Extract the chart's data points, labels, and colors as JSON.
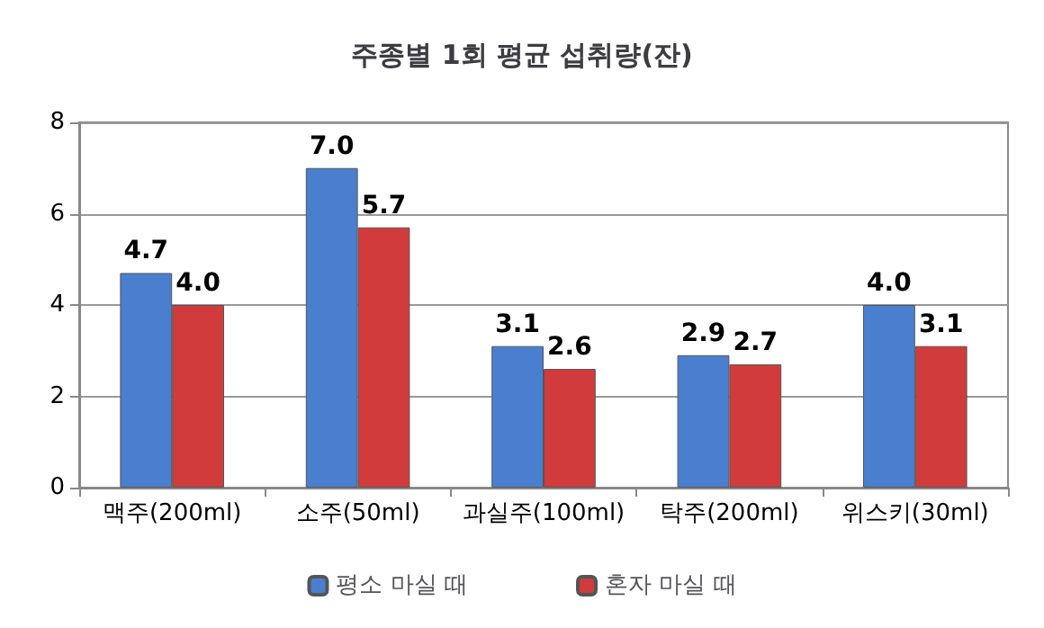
{
  "chart_data": {
    "type": "bar",
    "title": "주종별 1회 평균 섭취량(잔)",
    "categories": [
      "맥주(200ml)",
      "소주(50ml)",
      "과실주(100ml)",
      "탁주(200ml)",
      "위스키(30ml)"
    ],
    "series": [
      {
        "name": "평소 마실 때",
        "color": "#4a7fd0",
        "values": [
          4.7,
          7.0,
          3.1,
          2.9,
          4.0
        ],
        "value_labels": [
          "4.7",
          "7.0",
          "3.1",
          "2.9",
          "4.0"
        ]
      },
      {
        "name": "혼자 마실 때",
        "color": "#d23b3b",
        "values": [
          4.0,
          5.7,
          2.6,
          2.7,
          3.1
        ],
        "value_labels": [
          "4.0",
          "5.7",
          "2.6",
          "2.7",
          "3.1"
        ]
      }
    ],
    "ylim": [
      0,
      8
    ],
    "yticks": [
      0,
      2,
      4,
      6,
      8
    ],
    "grid": "y",
    "legend": "bottom"
  }
}
